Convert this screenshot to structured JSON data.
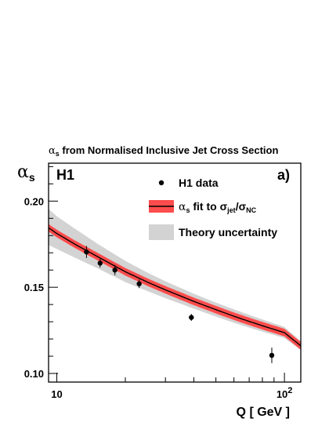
{
  "chart_data": {
    "type": "line",
    "title_html": "α_s from Normalised Inclusive Jet Cross Section",
    "title_sym": "α",
    "title_sub": "s",
    "title_rest": " from Normalised Inclusive Jet Cross Section",
    "ylabel_sym": "α",
    "ylabel_sub": "s",
    "xlabel": "Q  [ GeV ]",
    "experiment_label": "H1",
    "panel_label": "a)",
    "x_scale": "log",
    "xlim": [
      9.2,
      118
    ],
    "ylim": [
      0.095,
      0.222
    ],
    "x_ticks_major": [
      {
        "value": 10,
        "label": "10"
      },
      {
        "value": 100,
        "label": "10",
        "exponent": "2"
      }
    ],
    "y_ticks_major": [
      {
        "value": 0.1,
        "label": "0.10"
      },
      {
        "value": 0.15,
        "label": "0.15"
      },
      {
        "value": 0.2,
        "label": "0.20"
      }
    ],
    "grid": false,
    "legend_position": "top-right",
    "legend": [
      {
        "key": "data",
        "text": "H1 data"
      },
      {
        "key": "fit",
        "sym": "α",
        "sub": "s",
        "mid": " fit to σ",
        "sub2": "jet",
        "mid2": "/σ",
        "sub3": "NC"
      },
      {
        "key": "theory",
        "text": "Theory uncertainty"
      }
    ],
    "series": [
      {
        "name": "H1 data",
        "kind": "points",
        "x": [
          13.5,
          15.5,
          18.0,
          23.0,
          39.0,
          88.0
        ],
        "y": [
          0.1705,
          0.164,
          0.16,
          0.152,
          0.1325,
          0.1105
        ],
        "yerr": [
          0.0035,
          0.0025,
          0.003,
          0.0025,
          0.002,
          0.0045
        ]
      },
      {
        "name": "αs fit to σjet/σNC",
        "kind": "curve",
        "x": [
          9.2,
          10,
          12,
          15,
          20,
          25,
          30,
          40,
          50,
          60,
          70,
          80,
          100,
          118
        ],
        "y": [
          0.1845,
          0.1812,
          0.175,
          0.168,
          0.159,
          0.153,
          0.1485,
          0.1418,
          0.137,
          0.1332,
          0.1302,
          0.1277,
          0.1237,
          0.116
        ]
      },
      {
        "name": "Theory uncertainty",
        "kind": "band",
        "x": [
          9.2,
          10,
          12,
          15,
          20,
          25,
          30,
          40,
          50,
          60,
          70,
          80,
          100,
          118
        ],
        "y_low": [
          0.1745,
          0.1722,
          0.1672,
          0.1612,
          0.153,
          0.1478,
          0.1437,
          0.1376,
          0.133,
          0.1294,
          0.1266,
          0.1243,
          0.1205,
          0.1135
        ],
        "y_high": [
          0.1955,
          0.1912,
          0.184,
          0.1755,
          0.1653,
          0.1585,
          0.1535,
          0.1462,
          0.1411,
          0.1372,
          0.134,
          0.1313,
          0.127,
          0.1188
        ]
      }
    ],
    "colors": {
      "fit_line": "#000000",
      "fit_band": "#ff4c4c",
      "theory_band": "#d3d3d3",
      "data": "#000000"
    }
  }
}
